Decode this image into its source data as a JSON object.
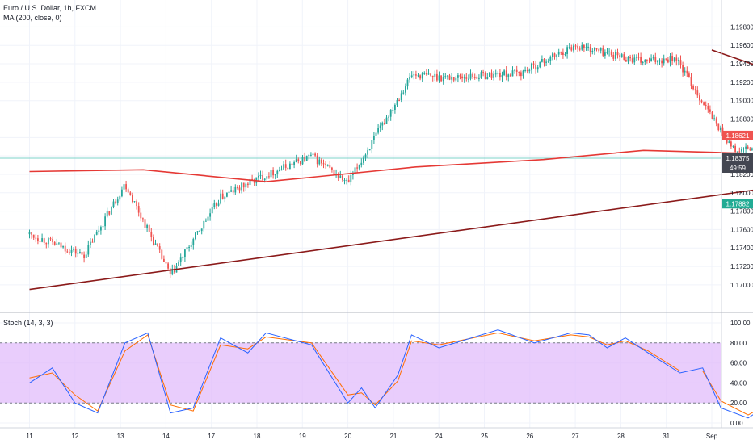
{
  "header": {
    "symbol_line": "Euro / U.S. Dollar, 1h, FXCM",
    "ma_line": "MA (200, close, 0)"
  },
  "stoch_legend": "Stoch (14, 3, 3)",
  "colors": {
    "up": "#26a69a",
    "down": "#ef5350",
    "ma": "#e53935",
    "trendline": "#8b1a1a",
    "price_line": "#7ed3c9",
    "stoch_band": "#e1bcfb",
    "stoch_k": "#2962ff",
    "stoch_d": "#ff6d00",
    "stop_zone": "#f9c9c9",
    "target_zone": "#c9ebe3",
    "badge_red": "#ef5350",
    "badge_dark": "#434651",
    "badge_green": "#22ab94"
  },
  "chart_data": [
    {
      "type": "candlestick",
      "title": "Euro / U.S. Dollar, 1h, FXCM",
      "x_ticks": [
        "11",
        "12",
        "13",
        "14",
        "17",
        "18",
        "19",
        "20",
        "21",
        "24",
        "25",
        "26",
        "27",
        "28",
        "31",
        "Sep"
      ],
      "y_ticks": [
        "1.19800",
        "1.19600",
        "1.19400",
        "1.19200",
        "1.19000",
        "1.18800",
        "1.18600",
        "1.18400",
        "1.18200",
        "1.18000",
        "1.17800",
        "1.17600",
        "1.17400",
        "1.17200",
        "1.17000"
      ],
      "ylim": [
        1.1685,
        1.199
      ],
      "series_path": [
        [
          0,
          1.1755
        ],
        [
          1.2,
          1.1732
        ],
        [
          2.1,
          1.181
        ],
        [
          3.1,
          1.171
        ],
        [
          4.2,
          1.1795
        ],
        [
          5,
          1.1815
        ],
        [
          6.2,
          1.184
        ],
        [
          7,
          1.181
        ],
        [
          8.4,
          1.1928
        ],
        [
          9.3,
          1.1925
        ],
        [
          10.8,
          1.193
        ],
        [
          12,
          1.196
        ],
        [
          13.5,
          1.1942
        ],
        [
          14.2,
          1.1947
        ],
        [
          14.9,
          1.189
        ],
        [
          15.5,
          1.1845
        ],
        [
          16.5,
          1.1852
        ],
        [
          17.5,
          1.186
        ],
        [
          18.1,
          1.1878
        ],
        [
          18.6,
          1.1854
        ],
        [
          19.1,
          1.179
        ],
        [
          19.6,
          1.18
        ],
        [
          20.4,
          1.1802
        ],
        [
          21,
          1.1822
        ],
        [
          21.6,
          1.1835
        ]
      ],
      "moving_average": {
        "name": "MA (200, close, 0)",
        "points": [
          [
            0,
            1.1823
          ],
          [
            2.5,
            1.1825
          ],
          [
            5.2,
            1.1812
          ],
          [
            8.5,
            1.1828
          ],
          [
            11.3,
            1.1836
          ],
          [
            13.5,
            1.1846
          ],
          [
            16.4,
            1.1842
          ],
          [
            18.3,
            1.1847
          ],
          [
            20.2,
            1.185
          ],
          [
            22,
            1.185
          ]
        ]
      },
      "trendlines": [
        {
          "from": [
            0,
            1.1695
          ],
          "to": [
            24.5,
            1.1861
          ]
        },
        {
          "from": [
            15,
            1.1955
          ],
          "to": [
            24,
            1.1801
          ]
        }
      ],
      "horizontal_lines": [
        1.18375
      ],
      "position_tool": {
        "x_range": [
          21.7,
          26.5
        ],
        "entry": 1.18375,
        "stop": 1.18621,
        "target": 1.17882
      },
      "price_labels": [
        {
          "text": "1.18621",
          "value": 1.18621,
          "style": "red"
        },
        {
          "text": "1.18375",
          "value": 1.18375,
          "style": "dark"
        },
        {
          "text": "49:59",
          "value": 1.18375,
          "style": "dark"
        },
        {
          "text": "1.17882",
          "value": 1.17882,
          "style": "green"
        }
      ]
    },
    {
      "type": "line",
      "title": "Stoch (14, 3, 3)",
      "y_ticks": [
        "100.00",
        "80.00",
        "60.00",
        "40.00",
        "20.00",
        "0.00"
      ],
      "ylim": [
        0,
        100
      ],
      "bands": [
        20,
        80
      ],
      "k_path": [
        [
          0,
          40
        ],
        [
          0.5,
          55
        ],
        [
          1.0,
          20
        ],
        [
          1.5,
          10
        ],
        [
          2.1,
          80
        ],
        [
          2.6,
          90
        ],
        [
          3.1,
          10
        ],
        [
          3.6,
          15
        ],
        [
          4.2,
          85
        ],
        [
          4.8,
          70
        ],
        [
          5.2,
          90
        ],
        [
          6.2,
          78
        ],
        [
          7.0,
          20
        ],
        [
          7.3,
          35
        ],
        [
          7.6,
          15
        ],
        [
          8.1,
          48
        ],
        [
          8.4,
          88
        ],
        [
          9.0,
          75
        ],
        [
          10.3,
          93
        ],
        [
          11.1,
          80
        ],
        [
          11.9,
          90
        ],
        [
          12.3,
          88
        ],
        [
          12.7,
          75
        ],
        [
          13.1,
          85
        ],
        [
          13.6,
          70
        ],
        [
          14.3,
          50
        ],
        [
          14.8,
          55
        ],
        [
          15.2,
          15
        ],
        [
          15.8,
          5
        ],
        [
          17.3,
          50
        ],
        [
          18.2,
          94
        ],
        [
          18.5,
          90
        ],
        [
          18.7,
          10
        ],
        [
          19.1,
          5
        ],
        [
          19.5,
          12
        ],
        [
          20.4,
          60
        ],
        [
          20.8,
          72
        ],
        [
          21.3,
          95
        ],
        [
          21.8,
          88
        ]
      ],
      "d_path": [
        [
          0,
          45
        ],
        [
          0.5,
          50
        ],
        [
          1.0,
          28
        ],
        [
          1.5,
          12
        ],
        [
          2.1,
          72
        ],
        [
          2.6,
          88
        ],
        [
          3.1,
          18
        ],
        [
          3.6,
          12
        ],
        [
          4.2,
          78
        ],
        [
          4.8,
          74
        ],
        [
          5.2,
          86
        ],
        [
          6.2,
          80
        ],
        [
          7.0,
          28
        ],
        [
          7.3,
          30
        ],
        [
          7.6,
          18
        ],
        [
          8.1,
          42
        ],
        [
          8.4,
          82
        ],
        [
          9.0,
          78
        ],
        [
          10.3,
          90
        ],
        [
          11.1,
          82
        ],
        [
          11.9,
          88
        ],
        [
          12.3,
          86
        ],
        [
          12.7,
          78
        ],
        [
          13.1,
          82
        ],
        [
          13.6,
          72
        ],
        [
          14.3,
          52
        ],
        [
          14.8,
          52
        ],
        [
          15.2,
          22
        ],
        [
          15.8,
          8
        ],
        [
          17.3,
          45
        ],
        [
          18.2,
          90
        ],
        [
          18.5,
          92
        ],
        [
          18.7,
          18
        ],
        [
          19.1,
          8
        ],
        [
          19.5,
          10
        ],
        [
          20.4,
          55
        ],
        [
          20.8,
          68
        ],
        [
          21.3,
          92
        ],
        [
          21.8,
          90
        ]
      ]
    }
  ]
}
